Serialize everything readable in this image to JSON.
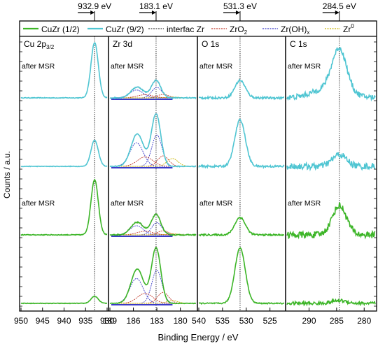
{
  "chart_data": {
    "type": "line",
    "xlabel": "Binding Energy / eV",
    "ylabel": "Counts / a.u.",
    "legend_position": "top",
    "colors": {
      "CuZr (1/2)": "#3cb527",
      "CuZr (9/2)": "#4fc5d2",
      "interfac Zr": "#444444",
      "ZrO2": "#c0392b",
      "Zr(OH)x": "#3a3ac8",
      "Zr0": "#c8b400",
      "envelope": "#7a3a8a"
    },
    "legend": [
      {
        "key": "cu12",
        "label": "CuZr (1/2)",
        "sub": ""
      },
      {
        "key": "cu92",
        "label": "CuZr (9/2)",
        "sub": ""
      },
      {
        "key": "interfac",
        "label": "interfac Zr",
        "sub": ""
      },
      {
        "key": "zro2",
        "label": "ZrO",
        "sub": "2"
      },
      {
        "key": "zroh",
        "label": "Zr(OH)",
        "sub": "x"
      },
      {
        "key": "zr0",
        "label": "Zr",
        "sup": "0"
      }
    ],
    "reference_lines": [
      {
        "panel": "Cu 2p3/2",
        "energy": 932.9,
        "label": "932.9 eV"
      },
      {
        "panel": "Zr 3d",
        "energy": 183.1,
        "label": "183.1 eV"
      },
      {
        "panel": "O 1s",
        "energy": 531.3,
        "label": "531.3 eV"
      },
      {
        "panel": "C 1s",
        "energy": 284.5,
        "label": "284.5 eV"
      }
    ],
    "panels": [
      {
        "name": "Cu 2p",
        "sub": "3/2",
        "xrange": [
          950,
          930
        ],
        "ticks": [
          "950",
          "945",
          "940",
          "935",
          "930"
        ],
        "peak": 932.9,
        "width": 0.85,
        "heights": [
          0.95,
          0.45,
          0.95,
          0.12
        ],
        "noise": [
          0.012,
          0.01,
          0.015,
          0.01
        ]
      },
      {
        "name": "Zr 3d",
        "sub": "",
        "xrange": [
          189,
          178
        ],
        "ticks": [
          "189",
          "186",
          "183",
          "180"
        ],
        "peak": 183.1,
        "heights": [
          0.3,
          0.9,
          0.35,
          0.95
        ],
        "noise": [
          0.02,
          0.015,
          0.02,
          0.01
        ]
      },
      {
        "name": "O 1s",
        "sub": "",
        "xrange": [
          540,
          522
        ],
        "ticks": [
          "540",
          "535",
          "530",
          "525"
        ],
        "peak": 531.3,
        "width": 1.1,
        "heights": [
          0.3,
          0.8,
          0.3,
          0.95
        ],
        "noise": [
          0.04,
          0.04,
          0.03,
          0.02
        ]
      },
      {
        "name": "C 1s",
        "sub": "",
        "xrange": [
          294,
          278
        ],
        "ticks": [
          "290",
          "285",
          "280"
        ],
        "peak": 284.5,
        "width": 1.3,
        "heights": [
          0.7,
          0.2,
          0.5,
          0.05
        ],
        "noise": [
          0.1,
          0.12,
          0.12,
          0.06
        ]
      }
    ],
    "annotation": "after MSR",
    "annotation_rows": [
      0,
      2
    ],
    "row_series": [
      "cu92",
      "cu92",
      "cu12",
      "cu12"
    ]
  }
}
